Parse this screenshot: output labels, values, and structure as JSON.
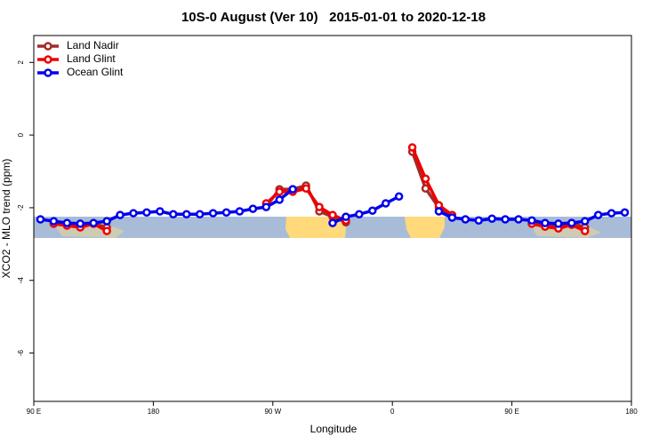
{
  "chart_data": {
    "type": "line",
    "title": "10S-0 August (Ver 10)   2015-01-01 to 2020-12-18",
    "x_label": "Longitude",
    "y_label": "XCO2 - MLO trend (ppm)",
    "x": [
      95,
      105,
      115,
      125,
      135,
      145,
      155,
      165,
      175,
      185,
      195,
      205,
      215,
      225,
      235,
      245,
      255,
      265,
      275,
      285,
      295,
      305,
      315,
      325,
      335,
      345,
      355,
      365,
      375,
      385,
      395,
      405,
      415,
      425,
      435,
      445,
      455,
      465,
      475,
      485,
      495,
      505,
      515,
      525,
      535
    ],
    "series": [
      {
        "name": "Land Nadir",
        "color": "#a52a2a",
        "values": [
          null,
          -2.4,
          -2.44,
          -2.49,
          -2.44,
          -2.54,
          null,
          null,
          null,
          null,
          null,
          null,
          null,
          null,
          null,
          null,
          null,
          -1.96,
          -1.49,
          -1.49,
          -1.39,
          -2.1,
          -2.25,
          -2.4,
          null,
          null,
          null,
          null,
          -0.46,
          -1.47,
          -2.0,
          -2.25,
          null,
          null,
          null,
          null,
          null,
          -2.4,
          -2.47,
          -2.52,
          -2.42,
          -2.54,
          null,
          null,
          null
        ]
      },
      {
        "name": "Land Glint",
        "color": "#ee0000",
        "values": [
          null,
          -2.44,
          -2.49,
          -2.54,
          -2.44,
          -2.64,
          null,
          null,
          null,
          null,
          null,
          null,
          null,
          null,
          null,
          null,
          null,
          -1.88,
          -1.56,
          -1.56,
          -1.47,
          -1.98,
          -2.2,
          -2.35,
          null,
          null,
          null,
          null,
          -0.34,
          -1.2,
          -1.93,
          -2.2,
          null,
          null,
          null,
          null,
          null,
          -2.44,
          -2.52,
          -2.57,
          -2.47,
          -2.64,
          null,
          null,
          null
        ]
      },
      {
        "name": "Ocean Glint",
        "color": "#0000ee",
        "values": [
          -2.32,
          -2.37,
          -2.42,
          -2.44,
          -2.42,
          -2.37,
          -2.2,
          -2.15,
          -2.13,
          -2.1,
          -2.18,
          -2.18,
          -2.18,
          -2.15,
          -2.13,
          -2.1,
          -2.03,
          -1.98,
          -1.78,
          -1.49,
          null,
          null,
          -2.42,
          -2.25,
          -2.18,
          -2.08,
          -1.88,
          -1.69,
          null,
          null,
          -2.1,
          -2.27,
          -2.32,
          -2.35,
          -2.3,
          -2.32,
          -2.32,
          -2.35,
          -2.42,
          -2.44,
          -2.42,
          -2.37,
          -2.2,
          -2.15,
          -2.13
        ]
      }
    ],
    "xlim": [
      90,
      540
    ],
    "xticks": [
      {
        "value": 90,
        "label": "90 E"
      },
      180,
      {
        "value": 270,
        "label": "90 W"
      },
      {
        "value": 360,
        "label": "0"
      },
      {
        "value": 450,
        "label": "90 E"
      },
      {
        "value": 540,
        "label": "180"
      }
    ],
    "ylim": [
      -7.33,
      2.74
    ],
    "yticks": [
      2,
      0,
      -2,
      -4,
      -6
    ],
    "legend": "top-left"
  }
}
